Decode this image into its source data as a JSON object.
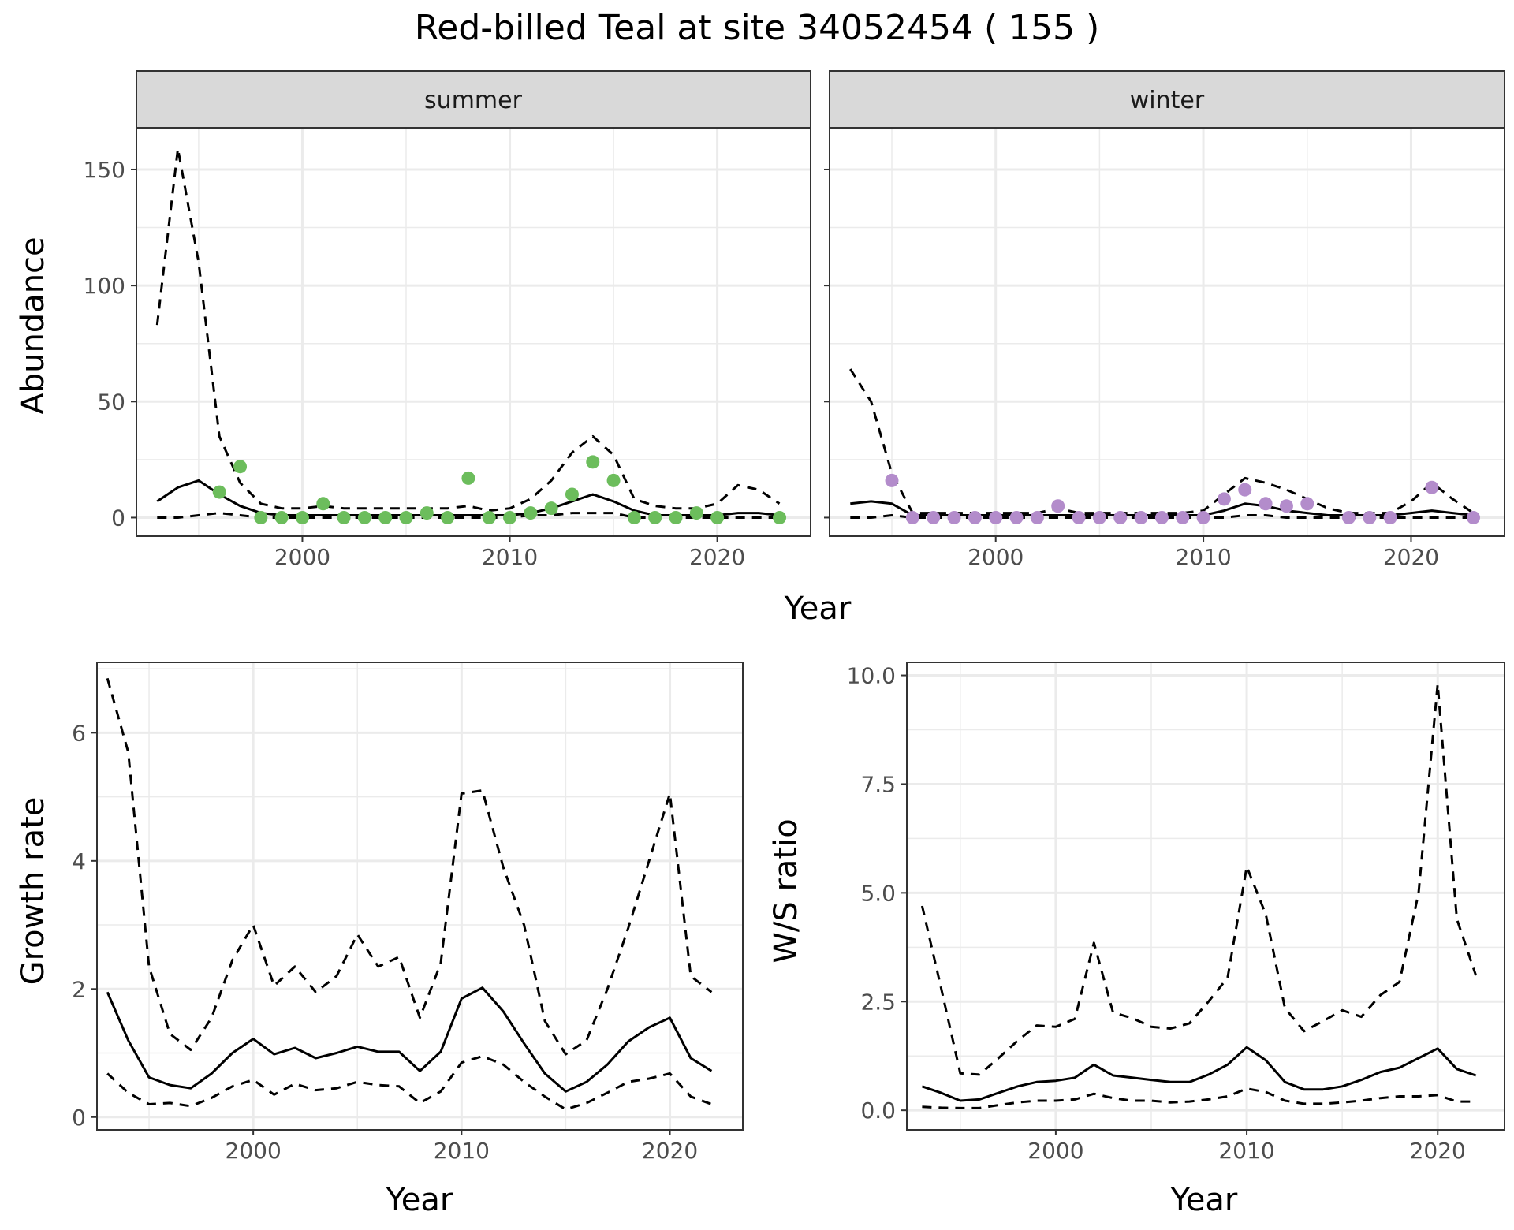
{
  "title": "Red-billed Teal at site 34052454 ( 155 )",
  "colors": {
    "summer_points": "#6cbd5c",
    "winter_points": "#b38ccb",
    "line": "#000000",
    "grid": "#ebebeb"
  },
  "chart_data": [
    {
      "type": "line",
      "facet": "summer",
      "xlabel": "Year",
      "ylabel": "Abundance",
      "xlim": [
        1992,
        2024.5
      ],
      "ylim": [
        -8,
        168
      ],
      "xticks": [
        2000,
        2010,
        2020
      ],
      "yticks": [
        0,
        50,
        100,
        150
      ],
      "grid": true,
      "series": [
        {
          "style": "solid",
          "x": [
            1993,
            1994,
            1995,
            1996,
            1997,
            1998,
            1999,
            2000,
            2001,
            2002,
            2003,
            2004,
            2005,
            2006,
            2007,
            2008,
            2009,
            2010,
            2011,
            2012,
            2013,
            2014,
            2015,
            2016,
            2017,
            2018,
            2019,
            2020,
            2021,
            2022,
            2023
          ],
          "values": [
            7,
            13,
            16,
            10,
            5,
            2,
            1,
            1,
            1,
            1,
            1,
            1,
            1,
            1,
            1,
            1,
            1,
            1,
            2,
            4,
            7,
            10,
            7,
            3,
            1,
            1,
            1,
            1,
            2,
            2,
            1
          ]
        },
        {
          "style": "dashed",
          "x": [
            1993,
            1994,
            1995,
            1996,
            1997,
            1998,
            1999,
            2000,
            2001,
            2002,
            2003,
            2004,
            2005,
            2006,
            2007,
            2008,
            2009,
            2010,
            2011,
            2012,
            2013,
            2014,
            2015,
            2016,
            2017,
            2018,
            2019,
            2020,
            2021,
            2022,
            2023
          ],
          "values": [
            83,
            159,
            110,
            35,
            15,
            6,
            4,
            4,
            5,
            4,
            4,
            4,
            4,
            4,
            4,
            5,
            3,
            4,
            8,
            16,
            28,
            35,
            27,
            8,
            5,
            4,
            4,
            6,
            14,
            12,
            6
          ]
        },
        {
          "style": "dashed",
          "x": [
            1993,
            1994,
            1995,
            1996,
            1997,
            1998,
            1999,
            2000,
            2001,
            2002,
            2003,
            2004,
            2005,
            2006,
            2007,
            2008,
            2009,
            2010,
            2011,
            2012,
            2013,
            2014,
            2015,
            2016,
            2017,
            2018,
            2019,
            2020,
            2021,
            2022,
            2023
          ],
          "values": [
            0,
            0,
            1,
            2,
            1,
            0,
            0,
            0,
            0,
            0,
            0,
            0,
            0,
            0,
            0,
            0,
            0,
            0,
            1,
            1,
            2,
            2,
            2,
            0,
            0,
            0,
            0,
            0,
            0,
            0,
            0
          ]
        },
        {
          "style": "points",
          "x": [
            1996,
            1997,
            1998,
            1999,
            2000,
            2001,
            2002,
            2003,
            2004,
            2005,
            2006,
            2007,
            2008,
            2009,
            2010,
            2011,
            2012,
            2013,
            2014,
            2015,
            2016,
            2017,
            2018,
            2019,
            2020,
            2023
          ],
          "values": [
            11,
            22,
            0,
            0,
            0,
            6,
            0,
            0,
            0,
            0,
            2,
            0,
            17,
            0,
            0,
            2,
            4,
            10,
            24,
            16,
            0,
            0,
            0,
            2,
            0,
            0
          ]
        }
      ]
    },
    {
      "type": "line",
      "facet": "winter",
      "xlabel": "Year",
      "ylabel": "Abundance",
      "xlim": [
        1992,
        2024.5
      ],
      "ylim": [
        -8,
        168
      ],
      "xticks": [
        2000,
        2010,
        2020
      ],
      "yticks": [
        0,
        50,
        100,
        150
      ],
      "grid": true,
      "series": [
        {
          "style": "solid",
          "x": [
            1993,
            1994,
            1995,
            1996,
            1997,
            1998,
            1999,
            2000,
            2001,
            2002,
            2003,
            2004,
            2005,
            2006,
            2007,
            2008,
            2009,
            2010,
            2011,
            2012,
            2013,
            2014,
            2015,
            2016,
            2017,
            2018,
            2019,
            2020,
            2021,
            2022,
            2023
          ],
          "values": [
            6,
            7,
            6,
            1,
            1,
            1,
            1,
            1,
            1,
            1,
            1,
            1,
            1,
            1,
            1,
            1,
            1,
            1,
            3,
            6,
            5,
            3,
            2,
            1,
            1,
            1,
            1,
            2,
            3,
            2,
            1
          ]
        },
        {
          "style": "dashed",
          "x": [
            1993,
            1994,
            1995,
            1996,
            1997,
            1998,
            1999,
            2000,
            2001,
            2002,
            2003,
            2004,
            2005,
            2006,
            2007,
            2008,
            2009,
            2010,
            2011,
            2012,
            2013,
            2014,
            2015,
            2016,
            2017,
            2018,
            2019,
            2020,
            2021,
            2022,
            2023
          ],
          "values": [
            64,
            50,
            19,
            2,
            2,
            2,
            2,
            2,
            2,
            2,
            4,
            2,
            2,
            2,
            2,
            2,
            2,
            3,
            10,
            17,
            15,
            12,
            8,
            4,
            2,
            2,
            2,
            7,
            15,
            8,
            2
          ]
        },
        {
          "style": "dashed",
          "x": [
            1993,
            1994,
            1995,
            1996,
            1997,
            1998,
            1999,
            2000,
            2001,
            2002,
            2003,
            2004,
            2005,
            2006,
            2007,
            2008,
            2009,
            2010,
            2011,
            2012,
            2013,
            2014,
            2015,
            2016,
            2017,
            2018,
            2019,
            2020,
            2021,
            2022,
            2023
          ],
          "values": [
            0,
            0,
            1,
            0,
            0,
            0,
            0,
            0,
            0,
            0,
            0,
            0,
            0,
            0,
            0,
            0,
            0,
            0,
            0,
            1,
            1,
            0,
            0,
            0,
            0,
            0,
            0,
            0,
            0,
            0,
            0
          ]
        },
        {
          "style": "points",
          "x": [
            1995,
            1996,
            1997,
            1998,
            1999,
            2000,
            2001,
            2002,
            2003,
            2004,
            2005,
            2006,
            2007,
            2008,
            2009,
            2010,
            2011,
            2012,
            2013,
            2014,
            2015,
            2017,
            2018,
            2019,
            2021,
            2023
          ],
          "values": [
            16,
            0,
            0,
            0,
            0,
            0,
            0,
            0,
            5,
            0,
            0,
            0,
            0,
            0,
            0,
            0,
            8,
            12,
            6,
            5,
            6,
            0,
            0,
            0,
            13,
            0
          ]
        }
      ]
    },
    {
      "type": "line",
      "xlabel": "Year",
      "ylabel": "Growth rate",
      "xlim": [
        1992.5,
        2023.5
      ],
      "ylim": [
        -0.2,
        7.1
      ],
      "xticks": [
        2000,
        2010,
        2020
      ],
      "yticks": [
        0,
        2,
        4,
        6
      ],
      "grid": true,
      "series": [
        {
          "style": "solid",
          "x": [
            1993,
            1994,
            1995,
            1996,
            1997,
            1998,
            1999,
            2000,
            2001,
            2002,
            2003,
            2004,
            2005,
            2006,
            2007,
            2008,
            2009,
            2010,
            2011,
            2012,
            2013,
            2014,
            2015,
            2016,
            2017,
            2018,
            2019,
            2020,
            2021,
            2022
          ],
          "values": [
            1.95,
            1.2,
            0.62,
            0.5,
            0.45,
            0.68,
            1,
            1.22,
            0.98,
            1.08,
            0.92,
            1,
            1.1,
            1.02,
            1.02,
            0.72,
            1.02,
            1.85,
            2.02,
            1.65,
            1.15,
            0.68,
            0.4,
            0.55,
            0.82,
            1.18,
            1.4,
            1.55,
            0.92,
            0.72
          ]
        },
        {
          "style": "dashed",
          "x": [
            1993,
            1994,
            1995,
            1996,
            1997,
            1998,
            1999,
            2000,
            2001,
            2002,
            2003,
            2004,
            2005,
            2006,
            2007,
            2008,
            2009,
            2010,
            2011,
            2012,
            2013,
            2014,
            2015,
            2016,
            2017,
            2018,
            2019,
            2020,
            2021,
            2022
          ],
          "values": [
            6.85,
            5.7,
            2.35,
            1.3,
            1.05,
            1.55,
            2.45,
            3,
            2.05,
            2.35,
            1.95,
            2.2,
            2.85,
            2.35,
            2.5,
            1.55,
            2.4,
            5.05,
            5.1,
            3.9,
            3,
            1.5,
            0.98,
            1.2,
            2,
            2.95,
            4,
            5.05,
            2.2,
            1.95
          ]
        },
        {
          "style": "dashed",
          "x": [
            1993,
            1994,
            1995,
            1996,
            1997,
            1998,
            1999,
            2000,
            2001,
            2002,
            2003,
            2004,
            2005,
            2006,
            2007,
            2008,
            2009,
            2010,
            2011,
            2012,
            2013,
            2014,
            2015,
            2016,
            2017,
            2018,
            2019,
            2020,
            2021,
            2022
          ],
          "values": [
            0.68,
            0.38,
            0.2,
            0.22,
            0.17,
            0.3,
            0.48,
            0.58,
            0.35,
            0.52,
            0.42,
            0.45,
            0.55,
            0.5,
            0.48,
            0.22,
            0.4,
            0.85,
            0.95,
            0.82,
            0.55,
            0.32,
            0.12,
            0.22,
            0.38,
            0.55,
            0.6,
            0.68,
            0.32,
            0.2
          ]
        }
      ]
    },
    {
      "type": "line",
      "xlabel": "Year",
      "ylabel": "W/S ratio",
      "xlim": [
        1992.2,
        2023.5
      ],
      "ylim": [
        -0.45,
        10.3
      ],
      "xticks": [
        2000,
        2010,
        2020
      ],
      "yticks": [
        0.0,
        2.5,
        5.0,
        7.5,
        10.0
      ],
      "ytick_labels": [
        "0.0",
        "2.5",
        "5.0",
        "7.5",
        "10.0"
      ],
      "grid": true,
      "series": [
        {
          "style": "solid",
          "x": [
            1993,
            1994,
            1995,
            1996,
            1997,
            1998,
            1999,
            2000,
            2001,
            2002,
            2003,
            2004,
            2005,
            2006,
            2007,
            2008,
            2009,
            2010,
            2011,
            2012,
            2013,
            2014,
            2015,
            2016,
            2017,
            2018,
            2019,
            2020,
            2021,
            2022
          ],
          "values": [
            0.55,
            0.4,
            0.22,
            0.25,
            0.4,
            0.55,
            0.65,
            0.68,
            0.75,
            1.05,
            0.8,
            0.75,
            0.7,
            0.65,
            0.65,
            0.82,
            1.05,
            1.45,
            1.15,
            0.65,
            0.48,
            0.48,
            0.55,
            0.7,
            0.88,
            0.98,
            1.2,
            1.42,
            0.95,
            0.8
          ]
        },
        {
          "style": "dashed",
          "x": [
            1993,
            1994,
            1995,
            1996,
            1997,
            1998,
            1999,
            2000,
            2001,
            2002,
            2003,
            2004,
            2005,
            2006,
            2007,
            2008,
            2009,
            2010,
            2011,
            2012,
            2013,
            2014,
            2015,
            2016,
            2017,
            2018,
            2019,
            2020,
            2021,
            2022
          ],
          "values": [
            4.7,
            2.8,
            0.85,
            0.82,
            1.2,
            1.6,
            1.95,
            1.92,
            2.1,
            3.85,
            2.25,
            2.12,
            1.92,
            1.88,
            2,
            2.5,
            3.05,
            5.6,
            4.5,
            2.35,
            1.82,
            2.05,
            2.3,
            2.15,
            2.65,
            2.95,
            5,
            9.8,
            4.4,
            3.1
          ]
        },
        {
          "style": "dashed",
          "x": [
            1993,
            1994,
            1995,
            1996,
            1997,
            1998,
            1999,
            2000,
            2001,
            2002,
            2003,
            2004,
            2005,
            2006,
            2007,
            2008,
            2009,
            2010,
            2011,
            2012,
            2013,
            2014,
            2015,
            2016,
            2017,
            2018,
            2019,
            2020,
            2021,
            2022
          ],
          "values": [
            0.08,
            0.06,
            0.05,
            0.05,
            0.12,
            0.18,
            0.22,
            0.22,
            0.25,
            0.38,
            0.28,
            0.22,
            0.22,
            0.18,
            0.2,
            0.25,
            0.32,
            0.5,
            0.42,
            0.22,
            0.15,
            0.15,
            0.18,
            0.22,
            0.28,
            0.32,
            0.32,
            0.35,
            0.2,
            0.2
          ]
        }
      ]
    }
  ]
}
